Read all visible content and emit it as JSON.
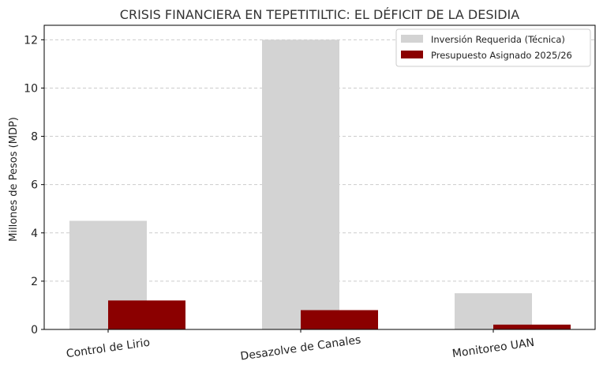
{
  "chart_data": {
    "type": "bar",
    "title": "CRISIS FINANCIERA EN TEPETITILTIC: EL DÉFICIT DE LA DESIDIA",
    "xlabel": "",
    "ylabel": "Millones de Pesos (MDP)",
    "categories": [
      "Control de Lirio",
      "Desazolve de Canales",
      "Monitoreo UAN"
    ],
    "series": [
      {
        "name": "Inversión Requerida (Técnica)",
        "values": [
          4.5,
          12,
          1.5
        ],
        "color": "#d3d3d3"
      },
      {
        "name": "Presupuesto Asignado 2025/26",
        "values": [
          1.2,
          0.8,
          0.2
        ],
        "color": "#8b0000"
      }
    ],
    "yticks": [
      "0",
      "2",
      "4",
      "6",
      "8",
      "10",
      "12"
    ],
    "ylim": [
      0,
      12.6
    ],
    "grid": true,
    "legend": "top-right"
  }
}
